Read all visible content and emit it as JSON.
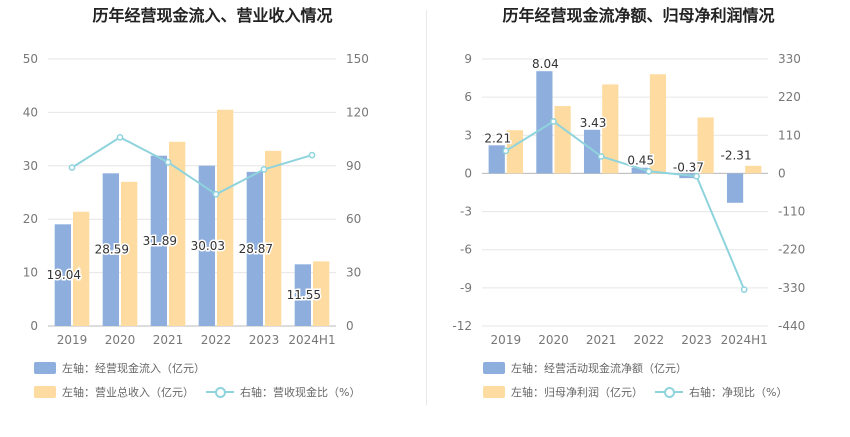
{
  "charts": {
    "left": {
      "title": "历年经营现金流入、营业收入情况",
      "legend": {
        "bar1": "左轴：经营现金流入（亿元）",
        "bar2": "左轴：营业总收入（亿元）",
        "line": "右轴：营收现金比（%）"
      }
    },
    "right": {
      "title": "历年经营现金流净额、归母净利润情况",
      "legend": {
        "bar1": "左轴：经营活动现金流净额（亿元）",
        "bar2": "左轴：归母净利润（亿元）",
        "line": "右轴：净现比（%）"
      }
    }
  },
  "colors": {
    "bar1": "#8eaedd",
    "bar2": "#fedba0",
    "line": "#8fd3dd"
  },
  "chart_data": [
    {
      "type": "bar",
      "title": "历年经营现金流入、营业收入情况",
      "categories": [
        "2019",
        "2020",
        "2021",
        "2022",
        "2023",
        "2024H1"
      ],
      "series": [
        {
          "name": "左轴：经营现金流入（亿元）",
          "axis": "left",
          "values": [
            19.04,
            28.59,
            31.89,
            30.03,
            28.87,
            11.55
          ],
          "labels": [
            "19.04",
            "28.59",
            "31.89",
            "30.03",
            "28.87",
            "11.55"
          ]
        },
        {
          "name": "左轴：营业总收入（亿元）",
          "axis": "left",
          "values": [
            21.4,
            27.0,
            34.5,
            40.5,
            32.8,
            12.1
          ]
        },
        {
          "name": "右轴：营收现金比（%）",
          "axis": "right",
          "type": "line",
          "values": [
            89,
            106,
            92,
            74,
            88,
            96
          ]
        }
      ],
      "y_left": {
        "range": [
          0,
          50
        ],
        "ticks": [
          "0",
          "10",
          "20",
          "30",
          "40",
          "50"
        ]
      },
      "y_right": {
        "range": [
          0,
          150
        ],
        "ticks": [
          "0",
          "30",
          "60",
          "90",
          "120",
          "150"
        ]
      },
      "grid": true,
      "legend_position": "bottom"
    },
    {
      "type": "bar",
      "title": "历年经营现金流净额、归母净利润情况",
      "categories": [
        "2019",
        "2020",
        "2021",
        "2022",
        "2023",
        "2024H1"
      ],
      "series": [
        {
          "name": "左轴：经营活动现金流净额（亿元）",
          "axis": "left",
          "values": [
            2.21,
            8.04,
            3.43,
            0.45,
            -0.37,
            -2.31
          ],
          "labels": [
            "2.21",
            "8.04",
            "3.43",
            "0.45",
            "-0.37",
            "-2.31"
          ]
        },
        {
          "name": "左轴：归母净利润（亿元）",
          "axis": "left",
          "values": [
            3.4,
            5.3,
            7.0,
            7.8,
            4.4,
            0.6
          ]
        },
        {
          "name": "右轴：净现比（%）",
          "axis": "right",
          "type": "line",
          "values": [
            65,
            150,
            49,
            6,
            -8,
            -335
          ]
        }
      ],
      "y_left": {
        "range": [
          -12,
          9
        ],
        "ticks": [
          "9",
          "6",
          "3",
          "0",
          "-3",
          "-6",
          "-9",
          "-12"
        ]
      },
      "y_right": {
        "range": [
          -440,
          330
        ],
        "ticks": [
          "330",
          "220",
          "110",
          "0",
          "-110",
          "-220",
          "-330",
          "-440"
        ]
      },
      "grid": true,
      "legend_position": "bottom"
    }
  ]
}
